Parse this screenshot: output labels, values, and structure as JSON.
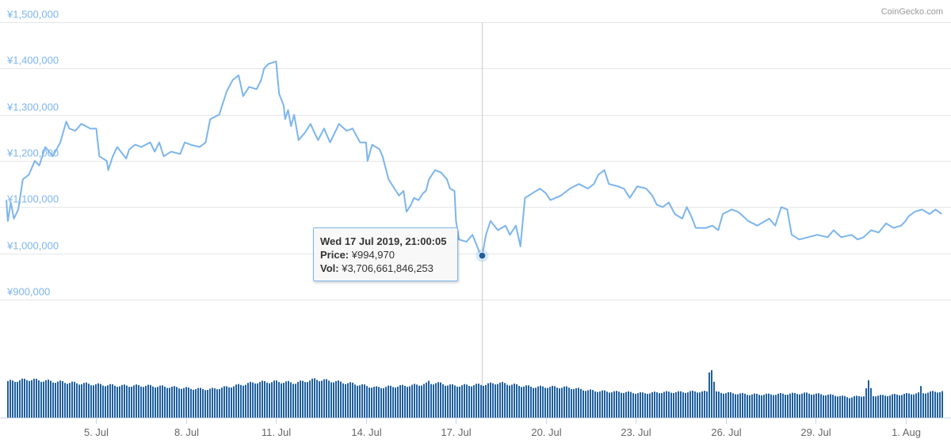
{
  "credit": "CoinGecko.com",
  "tooltip": {
    "date": "Wed 17 Jul 2019, 21:00:05",
    "price_label": "Price:",
    "price_value": "¥994,970",
    "vol_label": "Vol:",
    "vol_value": "¥3,706,661,846,253"
  },
  "colors": {
    "line": "#7cb5ec",
    "volume": "#1f5f9f",
    "grid": "#e6e6e6",
    "marker": "#1f5f9f"
  },
  "chart_data": {
    "type": "line",
    "title": "",
    "xlabel": "",
    "ylabel": "",
    "ylim": [
      900000,
      1500000
    ],
    "y_ticks": [
      "¥900,000",
      "¥1,000,000",
      "¥1,100,000",
      "¥1,200,000",
      "¥1,300,000",
      "¥1,400,000",
      "¥1,500,000"
    ],
    "x_range_days": [
      2.0,
      33.25
    ],
    "x_ticks": [
      {
        "label": "5. Jul",
        "day": 5
      },
      {
        "label": "8. Jul",
        "day": 8
      },
      {
        "label": "11. Jul",
        "day": 11
      },
      {
        "label": "14. Jul",
        "day": 14
      },
      {
        "label": "17. Jul",
        "day": 17
      },
      {
        "label": "20. Jul",
        "day": 20
      },
      {
        "label": "23. Jul",
        "day": 23
      },
      {
        "label": "26. Jul",
        "day": 26
      },
      {
        "label": "29. Jul",
        "day": 29
      },
      {
        "label": "1. Aug",
        "day": 32
      }
    ],
    "grid": true,
    "legend": "none",
    "series": [
      {
        "values": [
          [
            2.0,
            1115000
          ],
          [
            2.05,
            1070000
          ],
          [
            2.15,
            1110000
          ],
          [
            2.25,
            1075000
          ],
          [
            2.4,
            1095000
          ],
          [
            2.55,
            1160000
          ],
          [
            2.75,
            1170000
          ],
          [
            2.95,
            1200000
          ],
          [
            3.1,
            1190000
          ],
          [
            3.3,
            1230000
          ],
          [
            3.55,
            1210000
          ],
          [
            3.8,
            1240000
          ],
          [
            4.0,
            1285000
          ],
          [
            4.1,
            1270000
          ],
          [
            4.3,
            1265000
          ],
          [
            4.5,
            1280000
          ],
          [
            4.8,
            1270000
          ],
          [
            5.0,
            1270000
          ],
          [
            5.1,
            1210000
          ],
          [
            5.35,
            1200000
          ],
          [
            5.4,
            1180000
          ],
          [
            5.55,
            1210000
          ],
          [
            5.7,
            1230000
          ],
          [
            6.0,
            1205000
          ],
          [
            6.1,
            1225000
          ],
          [
            6.3,
            1235000
          ],
          [
            6.5,
            1230000
          ],
          [
            6.8,
            1240000
          ],
          [
            6.95,
            1220000
          ],
          [
            7.1,
            1240000
          ],
          [
            7.25,
            1210000
          ],
          [
            7.5,
            1220000
          ],
          [
            7.8,
            1215000
          ],
          [
            7.95,
            1240000
          ],
          [
            8.15,
            1235000
          ],
          [
            8.45,
            1230000
          ],
          [
            8.65,
            1240000
          ],
          [
            8.8,
            1290000
          ],
          [
            9.1,
            1300000
          ],
          [
            9.35,
            1350000
          ],
          [
            9.55,
            1375000
          ],
          [
            9.75,
            1385000
          ],
          [
            9.9,
            1340000
          ],
          [
            10.1,
            1360000
          ],
          [
            10.35,
            1355000
          ],
          [
            10.5,
            1375000
          ],
          [
            10.6,
            1400000
          ],
          [
            10.75,
            1410000
          ],
          [
            11.0,
            1415000
          ],
          [
            11.05,
            1380000
          ],
          [
            11.1,
            1345000
          ],
          [
            11.25,
            1320000
          ],
          [
            11.3,
            1290000
          ],
          [
            11.4,
            1310000
          ],
          [
            11.5,
            1275000
          ],
          [
            11.6,
            1300000
          ],
          [
            11.75,
            1245000
          ],
          [
            11.95,
            1260000
          ],
          [
            12.05,
            1270000
          ],
          [
            12.15,
            1280000
          ],
          [
            12.25,
            1265000
          ],
          [
            12.4,
            1245000
          ],
          [
            12.6,
            1270000
          ],
          [
            12.8,
            1240000
          ],
          [
            12.95,
            1260000
          ],
          [
            13.1,
            1280000
          ],
          [
            13.35,
            1265000
          ],
          [
            13.55,
            1270000
          ],
          [
            13.8,
            1240000
          ],
          [
            14.0,
            1240000
          ],
          [
            14.05,
            1200000
          ],
          [
            14.2,
            1235000
          ],
          [
            14.45,
            1225000
          ],
          [
            14.55,
            1210000
          ],
          [
            14.75,
            1160000
          ],
          [
            14.95,
            1140000
          ],
          [
            15.1,
            1125000
          ],
          [
            15.25,
            1135000
          ],
          [
            15.35,
            1090000
          ],
          [
            15.5,
            1105000
          ],
          [
            15.6,
            1120000
          ],
          [
            15.75,
            1115000
          ],
          [
            15.9,
            1130000
          ],
          [
            16.0,
            1135000
          ],
          [
            16.1,
            1160000
          ],
          [
            16.3,
            1180000
          ],
          [
            16.5,
            1175000
          ],
          [
            16.7,
            1160000
          ],
          [
            16.8,
            1140000
          ],
          [
            16.95,
            1135000
          ],
          [
            17.0,
            1070000
          ],
          [
            17.1,
            1030000
          ],
          [
            17.35,
            1025000
          ],
          [
            17.55,
            1040000
          ],
          [
            17.8,
            1000000
          ],
          [
            17.875,
            994970
          ],
          [
            18.0,
            1040000
          ],
          [
            18.15,
            1070000
          ],
          [
            18.4,
            1050000
          ],
          [
            18.65,
            1060000
          ],
          [
            18.8,
            1040000
          ],
          [
            19.0,
            1060000
          ],
          [
            19.15,
            1015000
          ],
          [
            19.3,
            1120000
          ],
          [
            19.55,
            1130000
          ],
          [
            19.8,
            1140000
          ],
          [
            20.0,
            1130000
          ],
          [
            20.15,
            1115000
          ],
          [
            20.5,
            1125000
          ],
          [
            20.8,
            1140000
          ],
          [
            21.1,
            1150000
          ],
          [
            21.4,
            1140000
          ],
          [
            21.6,
            1150000
          ],
          [
            21.75,
            1170000
          ],
          [
            21.95,
            1180000
          ],
          [
            22.1,
            1150000
          ],
          [
            22.4,
            1145000
          ],
          [
            22.6,
            1140000
          ],
          [
            22.8,
            1120000
          ],
          [
            23.05,
            1145000
          ],
          [
            23.35,
            1140000
          ],
          [
            23.55,
            1125000
          ],
          [
            23.7,
            1105000
          ],
          [
            23.9,
            1100000
          ],
          [
            24.1,
            1110000
          ],
          [
            24.3,
            1085000
          ],
          [
            24.55,
            1075000
          ],
          [
            24.7,
            1100000
          ],
          [
            24.85,
            1080000
          ],
          [
            25.0,
            1055000
          ],
          [
            25.35,
            1055000
          ],
          [
            25.55,
            1060000
          ],
          [
            25.75,
            1050000
          ],
          [
            25.9,
            1085000
          ],
          [
            26.2,
            1095000
          ],
          [
            26.4,
            1090000
          ],
          [
            26.5,
            1085000
          ],
          [
            26.75,
            1070000
          ],
          [
            27.05,
            1060000
          ],
          [
            27.45,
            1075000
          ],
          [
            27.65,
            1060000
          ],
          [
            27.85,
            1100000
          ],
          [
            28.05,
            1095000
          ],
          [
            28.2,
            1040000
          ],
          [
            28.45,
            1030000
          ],
          [
            28.75,
            1035000
          ],
          [
            29.05,
            1040000
          ],
          [
            29.4,
            1035000
          ],
          [
            29.6,
            1050000
          ],
          [
            29.85,
            1035000
          ],
          [
            30.2,
            1040000
          ],
          [
            30.4,
            1030000
          ],
          [
            30.6,
            1035000
          ],
          [
            30.85,
            1050000
          ],
          [
            31.1,
            1045000
          ],
          [
            31.35,
            1065000
          ],
          [
            31.6,
            1055000
          ],
          [
            31.85,
            1060000
          ],
          [
            32.0,
            1070000
          ],
          [
            32.1,
            1080000
          ],
          [
            32.3,
            1090000
          ],
          [
            32.55,
            1095000
          ],
          [
            32.8,
            1085000
          ],
          [
            33.0,
            1095000
          ],
          [
            33.2,
            1085000
          ]
        ]
      }
    ],
    "volume_profile": [
      [
        2.0,
        0.62
      ],
      [
        2.7,
        0.66
      ],
      [
        3.4,
        0.63
      ],
      [
        4.2,
        0.6
      ],
      [
        5.0,
        0.57
      ],
      [
        5.8,
        0.55
      ],
      [
        6.6,
        0.55
      ],
      [
        7.4,
        0.53
      ],
      [
        8.2,
        0.5
      ],
      [
        8.8,
        0.49
      ],
      [
        9.5,
        0.54
      ],
      [
        10.3,
        0.61
      ],
      [
        11.0,
        0.62
      ],
      [
        11.6,
        0.6
      ],
      [
        12.3,
        0.66
      ],
      [
        13.0,
        0.62
      ],
      [
        13.6,
        0.58
      ],
      [
        14.3,
        0.52
      ],
      [
        15.0,
        0.54
      ],
      [
        15.6,
        0.56
      ],
      [
        16.3,
        0.6
      ],
      [
        16.9,
        0.55
      ],
      [
        17.5,
        0.56
      ],
      [
        17.9,
        0.57
      ],
      [
        18.4,
        0.6
      ],
      [
        19.0,
        0.56
      ],
      [
        19.5,
        0.53
      ],
      [
        20.1,
        0.53
      ],
      [
        20.7,
        0.52
      ],
      [
        21.4,
        0.47
      ],
      [
        22.0,
        0.45
      ],
      [
        22.6,
        0.44
      ],
      [
        23.2,
        0.42
      ],
      [
        23.9,
        0.44
      ],
      [
        24.5,
        0.44
      ],
      [
        25.0,
        0.45
      ],
      [
        25.6,
        0.44
      ],
      [
        26.2,
        0.42
      ],
      [
        26.8,
        0.4
      ],
      [
        27.4,
        0.4
      ],
      [
        28.0,
        0.41
      ],
      [
        28.6,
        0.42
      ],
      [
        29.2,
        0.4
      ],
      [
        29.7,
        0.38
      ],
      [
        30.1,
        0.35
      ],
      [
        30.6,
        0.38
      ],
      [
        31.2,
        0.38
      ],
      [
        31.8,
        0.4
      ],
      [
        32.4,
        0.42
      ],
      [
        33.0,
        0.45
      ],
      [
        33.25,
        0.45
      ]
    ],
    "volume_spikes": [
      {
        "day": 25.46,
        "height": 1.0
      },
      {
        "day": 25.42,
        "height": 0.8
      },
      {
        "day": 25.51,
        "height": 0.85
      },
      {
        "day": 25.38,
        "height": 0.62
      },
      {
        "day": 25.56,
        "height": 0.62
      },
      {
        "day": 30.72,
        "height": 0.62
      },
      {
        "day": 30.77,
        "height": 0.58
      },
      {
        "day": 30.82,
        "height": 0.5
      },
      {
        "day": 30.67,
        "height": 0.5
      },
      {
        "day": 32.5,
        "height": 0.53
      },
      {
        "day": 19.2,
        "height": 0.58
      },
      {
        "day": 16.1,
        "height": 0.62
      }
    ],
    "crosshair_day": 17.875,
    "selected_point": {
      "day": 17.875,
      "price": 994970
    }
  }
}
